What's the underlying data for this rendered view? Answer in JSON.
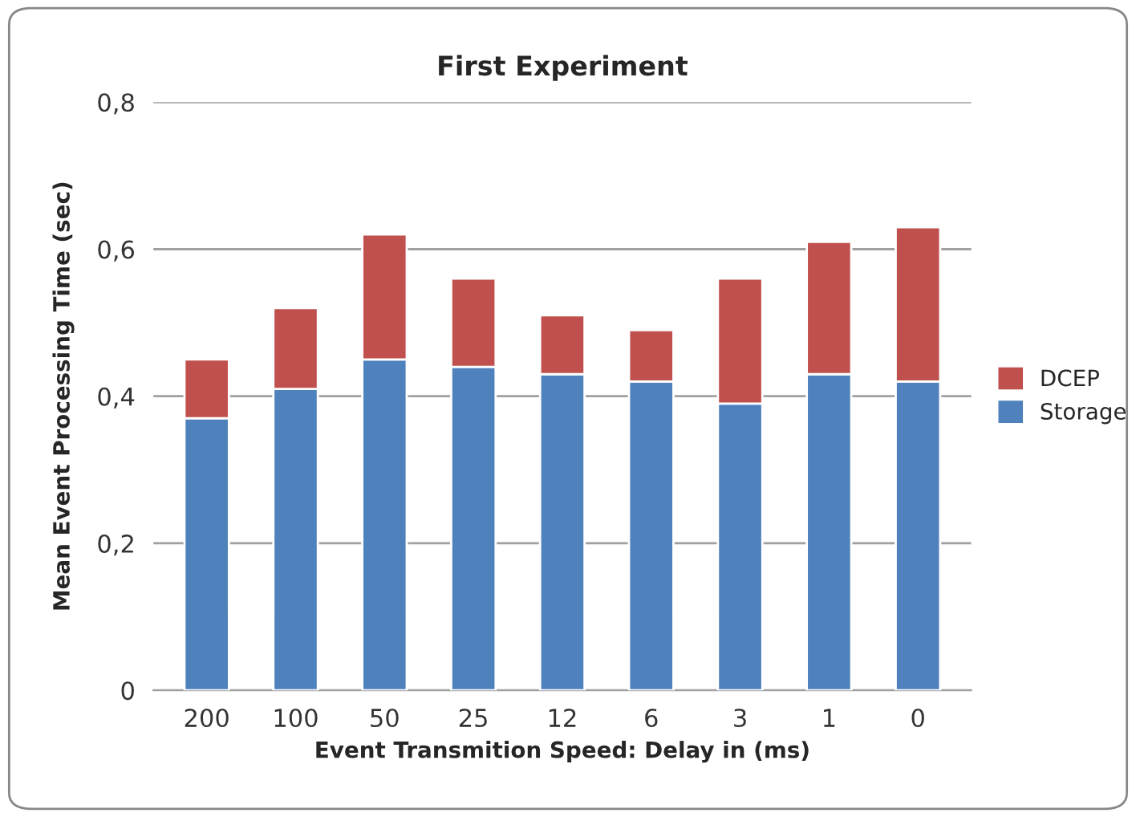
{
  "chart_data": {
    "type": "bar",
    "title": "First Experiment",
    "xlabel": "Event Transmition Speed: Delay in (ms)",
    "ylabel": "Mean Event Processing Time (sec)",
    "categories": [
      "200",
      "100",
      "50",
      "25",
      "12",
      "6",
      "3",
      "1",
      "0"
    ],
    "stacked": true,
    "series": [
      {
        "name": "Storage",
        "color": "#4f81bd",
        "values": [
          0.37,
          0.41,
          0.45,
          0.44,
          0.43,
          0.42,
          0.39,
          0.43,
          0.42
        ]
      },
      {
        "name": "DCEP",
        "color": "#c0504d",
        "values": [
          0.08,
          0.11,
          0.17,
          0.12,
          0.08,
          0.07,
          0.17,
          0.18,
          0.21
        ]
      }
    ],
    "ylim": [
      0,
      0.8
    ],
    "yticks": [
      0,
      {
        "value": 0.2,
        "label": "0,2"
      },
      {
        "value": 0.4,
        "label": "0,4"
      },
      {
        "value": 0.6,
        "label": "0,6"
      },
      {
        "value": 0.8,
        "label": "0,8"
      }
    ],
    "grid": "y",
    "legend": "right"
  }
}
